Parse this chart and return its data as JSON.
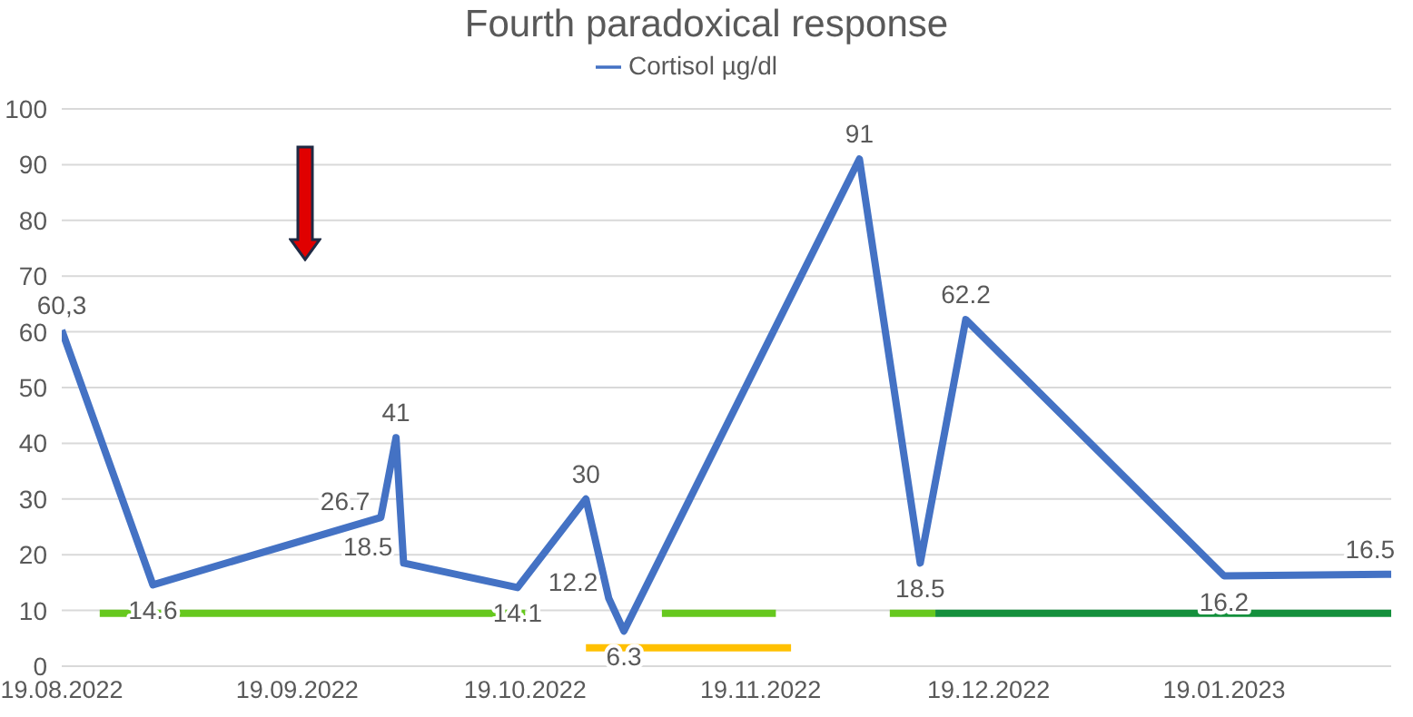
{
  "chart_data": {
    "type": "line",
    "title": "Fourth paradoxical response",
    "xlim": [
      "2022-08-19",
      "2023-02-10"
    ],
    "xticks": [
      {
        "value": "2022-08-19",
        "label": "19.08.2022"
      },
      {
        "value": "2022-09-19",
        "label": "19.09.2022"
      },
      {
        "value": "2022-10-19",
        "label": "19.10.2022"
      },
      {
        "value": "2022-11-19",
        "label": "19.11.2022"
      },
      {
        "value": "2022-12-19",
        "label": "19.12.2022"
      },
      {
        "value": "2023-01-19",
        "label": "19.01.2023"
      }
    ],
    "ylim": [
      0,
      100
    ],
    "yticks": [
      0,
      10,
      20,
      30,
      40,
      50,
      60,
      70,
      80,
      90,
      100
    ],
    "grid": "y",
    "legend": "top",
    "marker": "none",
    "line_style": "solid",
    "series": [
      {
        "name": "Cortisol µg/dl",
        "color": "#4472c4",
        "x": [
          "2022-08-19",
          "2022-08-31",
          "2022-09-30",
          "2022-10-02",
          "2022-10-03",
          "2022-10-18",
          "2022-10-27",
          "2022-10-30",
          "2022-11-01",
          "2022-12-02",
          "2022-12-10",
          "2022-12-16",
          "2023-01-19",
          "2023-02-10"
        ],
        "values": [
          60.3,
          14.6,
          26.7,
          41,
          18.5,
          14.1,
          30,
          12.2,
          6.3,
          91,
          18.5,
          62.2,
          16.2,
          16.5
        ],
        "value_labels": [
          "60,3",
          "14.6",
          "26.7",
          "41",
          "18.5",
          "14.1",
          "30",
          "12.2",
          "6.3",
          "91",
          "18.5",
          "62.2",
          "16.2",
          "16.5"
        ]
      },
      {
        "color": "#66c81e",
        "x": [
          "2022-08-24",
          "2022-10-19"
        ],
        "values": [
          9.5,
          9.5
        ]
      },
      {
        "color": "#66c81e",
        "x": [
          "2022-11-06",
          "2022-11-21"
        ],
        "values": [
          9.5,
          9.5
        ]
      },
      {
        "color": "#ffc000",
        "x": [
          "2022-10-27",
          "2022-11-23"
        ],
        "values": [
          3.3,
          3.3
        ]
      },
      {
        "color": "#66c81e",
        "x": [
          "2022-12-06",
          "2022-12-12"
        ],
        "values": [
          9.5,
          9.5
        ]
      },
      {
        "color": "#14903c",
        "x": [
          "2022-12-12",
          "2023-02-10"
        ],
        "values": [
          9.5,
          9.5
        ]
      }
    ]
  }
}
